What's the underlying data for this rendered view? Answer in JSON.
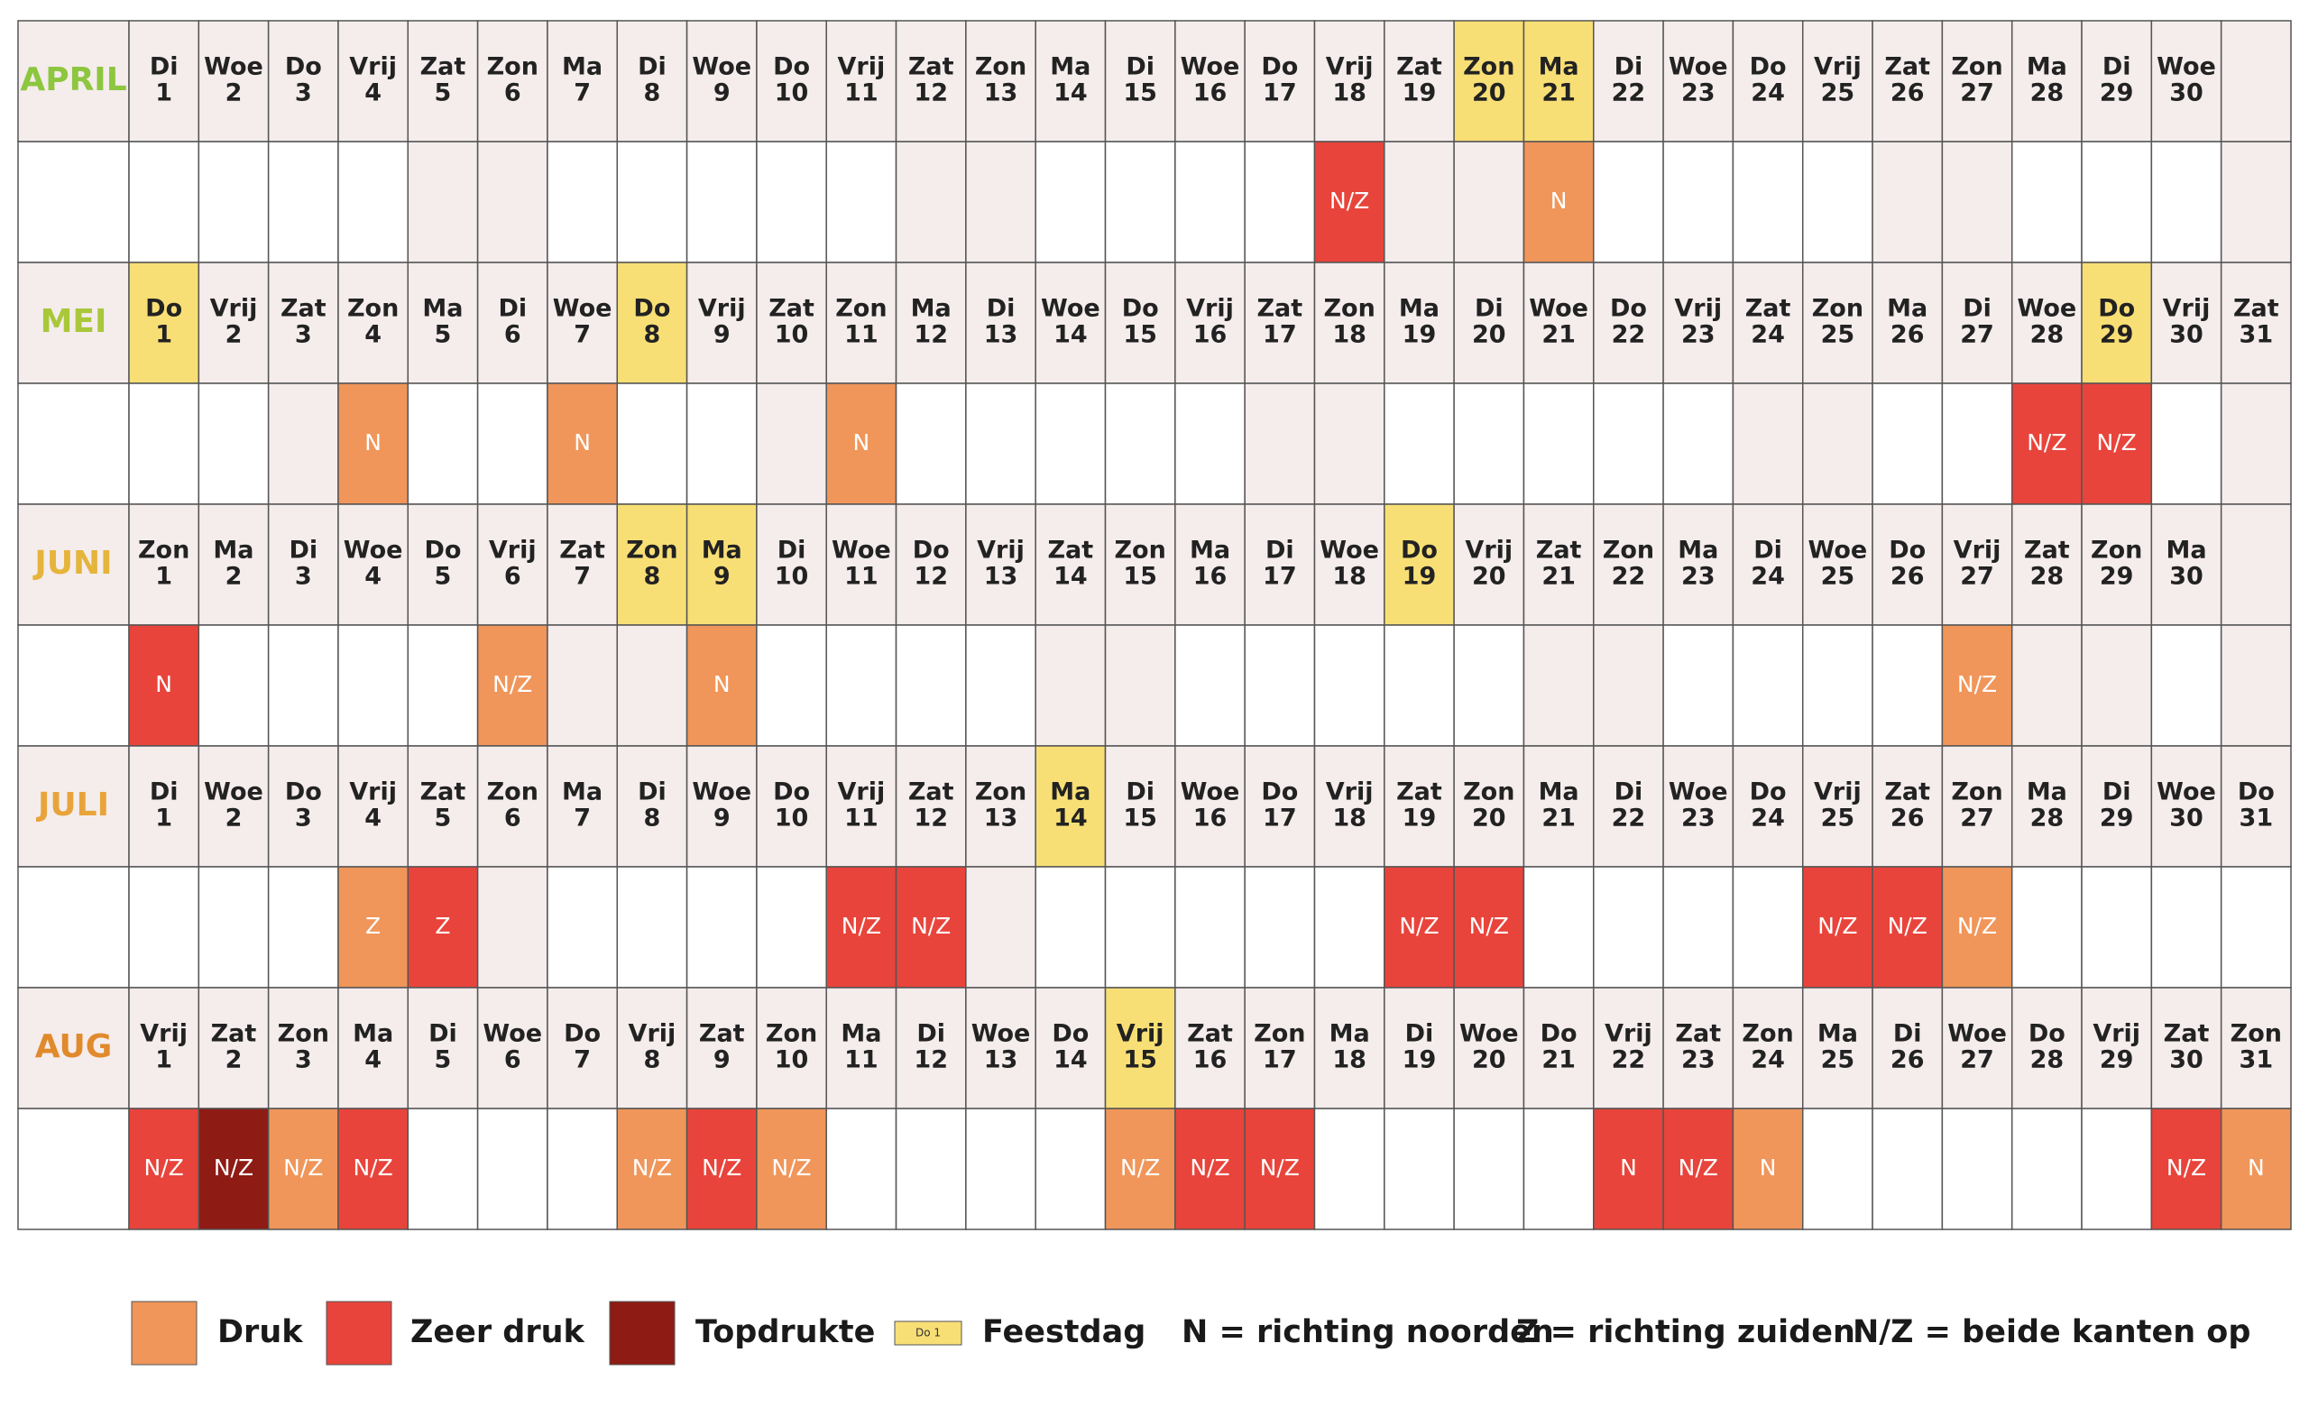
{
  "shaded_weekdays": [
    "Zat",
    "Zon"
  ],
  "months": [
    {
      "name": "APRIL",
      "color": "#8dc63f",
      "days": [
        {
          "wd": "Di",
          "n": 1
        },
        {
          "wd": "Woe",
          "n": 2
        },
        {
          "wd": "Do",
          "n": 3
        },
        {
          "wd": "Vrij",
          "n": 4
        },
        {
          "wd": "Zat",
          "n": 5
        },
        {
          "wd": "Zon",
          "n": 6
        },
        {
          "wd": "Ma",
          "n": 7
        },
        {
          "wd": "Di",
          "n": 8
        },
        {
          "wd": "Woe",
          "n": 9
        },
        {
          "wd": "Do",
          "n": 10
        },
        {
          "wd": "Vrij",
          "n": 11
        },
        {
          "wd": "Zat",
          "n": 12
        },
        {
          "wd": "Zon",
          "n": 13
        },
        {
          "wd": "Ma",
          "n": 14
        },
        {
          "wd": "Di",
          "n": 15
        },
        {
          "wd": "Woe",
          "n": 16
        },
        {
          "wd": "Do",
          "n": 17
        },
        {
          "wd": "Vrij",
          "n": 18,
          "traffic": {
            "level": "Zeer druk",
            "label": "N/Z"
          }
        },
        {
          "wd": "Zat",
          "n": 19
        },
        {
          "wd": "Zon",
          "n": 20,
          "holiday": true
        },
        {
          "wd": "Ma",
          "n": 21,
          "holiday": true,
          "traffic": {
            "level": "Druk",
            "label": "N"
          }
        },
        {
          "wd": "Di",
          "n": 22
        },
        {
          "wd": "Woe",
          "n": 23
        },
        {
          "wd": "Do",
          "n": 24
        },
        {
          "wd": "Vrij",
          "n": 25
        },
        {
          "wd": "Zat",
          "n": 26
        },
        {
          "wd": "Zon",
          "n": 27
        },
        {
          "wd": "Ma",
          "n": 28
        },
        {
          "wd": "Di",
          "n": 29
        },
        {
          "wd": "Woe",
          "n": 30
        }
      ]
    },
    {
      "name": "MEI",
      "color": "#a8c83a",
      "days": [
        {
          "wd": "Do",
          "n": 1,
          "holiday": true
        },
        {
          "wd": "Vrij",
          "n": 2
        },
        {
          "wd": "Zat",
          "n": 3
        },
        {
          "wd": "Zon",
          "n": 4,
          "traffic": {
            "level": "Druk",
            "label": "N"
          }
        },
        {
          "wd": "Ma",
          "n": 5
        },
        {
          "wd": "Di",
          "n": 6
        },
        {
          "wd": "Woe",
          "n": 7,
          "traffic": {
            "level": "Druk",
            "label": "N"
          }
        },
        {
          "wd": "Do",
          "n": 8,
          "holiday": true
        },
        {
          "wd": "Vrij",
          "n": 9
        },
        {
          "wd": "Zat",
          "n": 10
        },
        {
          "wd": "Zon",
          "n": 11,
          "traffic": {
            "level": "Druk",
            "label": "N"
          }
        },
        {
          "wd": "Ma",
          "n": 12
        },
        {
          "wd": "Di",
          "n": 13
        },
        {
          "wd": "Woe",
          "n": 14
        },
        {
          "wd": "Do",
          "n": 15
        },
        {
          "wd": "Vrij",
          "n": 16
        },
        {
          "wd": "Zat",
          "n": 17
        },
        {
          "wd": "Zon",
          "n": 18
        },
        {
          "wd": "Ma",
          "n": 19
        },
        {
          "wd": "Di",
          "n": 20
        },
        {
          "wd": "Woe",
          "n": 21
        },
        {
          "wd": "Do",
          "n": 22
        },
        {
          "wd": "Vrij",
          "n": 23
        },
        {
          "wd": "Zat",
          "n": 24
        },
        {
          "wd": "Zon",
          "n": 25
        },
        {
          "wd": "Ma",
          "n": 26
        },
        {
          "wd": "Di",
          "n": 27
        },
        {
          "wd": "Woe",
          "n": 28,
          "traffic": {
            "level": "Zeer druk",
            "label": "N/Z"
          }
        },
        {
          "wd": "Do",
          "n": 29,
          "holiday": true,
          "traffic": {
            "level": "Zeer druk",
            "label": "N/Z"
          }
        },
        {
          "wd": "Vrij",
          "n": 30
        },
        {
          "wd": "Zat",
          "n": 31
        }
      ]
    },
    {
      "name": "JUNI",
      "color": "#e5b43a",
      "days": [
        {
          "wd": "Zon",
          "n": 1,
          "traffic": {
            "level": "Zeer druk",
            "label": "N"
          }
        },
        {
          "wd": "Ma",
          "n": 2
        },
        {
          "wd": "Di",
          "n": 3
        },
        {
          "wd": "Woe",
          "n": 4
        },
        {
          "wd": "Do",
          "n": 5
        },
        {
          "wd": "Vrij",
          "n": 6,
          "traffic": {
            "level": "Druk",
            "label": "N/Z"
          }
        },
        {
          "wd": "Zat",
          "n": 7
        },
        {
          "wd": "Zon",
          "n": 8,
          "holiday": true
        },
        {
          "wd": "Ma",
          "n": 9,
          "holiday": true,
          "traffic": {
            "level": "Druk",
            "label": "N"
          }
        },
        {
          "wd": "Di",
          "n": 10
        },
        {
          "wd": "Woe",
          "n": 11
        },
        {
          "wd": "Do",
          "n": 12
        },
        {
          "wd": "Vrij",
          "n": 13
        },
        {
          "wd": "Zat",
          "n": 14
        },
        {
          "wd": "Zon",
          "n": 15
        },
        {
          "wd": "Ma",
          "n": 16
        },
        {
          "wd": "Di",
          "n": 17
        },
        {
          "wd": "Woe",
          "n": 18
        },
        {
          "wd": "Do",
          "n": 19,
          "holiday": true
        },
        {
          "wd": "Vrij",
          "n": 20
        },
        {
          "wd": "Zat",
          "n": 21
        },
        {
          "wd": "Zon",
          "n": 22
        },
        {
          "wd": "Ma",
          "n": 23
        },
        {
          "wd": "Di",
          "n": 24
        },
        {
          "wd": "Woe",
          "n": 25
        },
        {
          "wd": "Do",
          "n": 26
        },
        {
          "wd": "Vrij",
          "n": 27,
          "traffic": {
            "level": "Druk",
            "label": "N/Z"
          }
        },
        {
          "wd": "Zat",
          "n": 28
        },
        {
          "wd": "Zon",
          "n": 29
        },
        {
          "wd": "Ma",
          "n": 30
        }
      ]
    },
    {
      "name": "JULI",
      "color": "#e8a43a",
      "days": [
        {
          "wd": "Di",
          "n": 1
        },
        {
          "wd": "Woe",
          "n": 2
        },
        {
          "wd": "Do",
          "n": 3
        },
        {
          "wd": "Vrij",
          "n": 4,
          "traffic": {
            "level": "Druk",
            "label": "Z"
          }
        },
        {
          "wd": "Zat",
          "n": 5,
          "traffic": {
            "level": "Zeer druk",
            "label": "Z"
          }
        },
        {
          "wd": "Zon",
          "n": 6
        },
        {
          "wd": "Ma",
          "n": 7
        },
        {
          "wd": "Di",
          "n": 8
        },
        {
          "wd": "Woe",
          "n": 9
        },
        {
          "wd": "Do",
          "n": 10
        },
        {
          "wd": "Vrij",
          "n": 11,
          "traffic": {
            "level": "Zeer druk",
            "label": "N/Z"
          }
        },
        {
          "wd": "Zat",
          "n": 12,
          "traffic": {
            "level": "Zeer druk",
            "label": "N/Z"
          }
        },
        {
          "wd": "Zon",
          "n": 13
        },
        {
          "wd": "Ma",
          "n": 14,
          "holiday": true
        },
        {
          "wd": "Di",
          "n": 15
        },
        {
          "wd": "Woe",
          "n": 16
        },
        {
          "wd": "Do",
          "n": 17
        },
        {
          "wd": "Vrij",
          "n": 18
        },
        {
          "wd": "Zat",
          "n": 19,
          "traffic": {
            "level": "Zeer druk",
            "label": "N/Z"
          }
        },
        {
          "wd": "Zon",
          "n": 20,
          "traffic": {
            "level": "Zeer druk",
            "label": "N/Z"
          }
        },
        {
          "wd": "Ma",
          "n": 21
        },
        {
          "wd": "Di",
          "n": 22
        },
        {
          "wd": "Woe",
          "n": 23
        },
        {
          "wd": "Do",
          "n": 24
        },
        {
          "wd": "Vrij",
          "n": 25,
          "traffic": {
            "level": "Zeer druk",
            "label": "N/Z"
          }
        },
        {
          "wd": "Zat",
          "n": 26,
          "traffic": {
            "level": "Zeer druk",
            "label": "N/Z"
          }
        },
        {
          "wd": "Zon",
          "n": 27,
          "traffic": {
            "level": "Druk",
            "label": "N/Z"
          }
        },
        {
          "wd": "Ma",
          "n": 28
        },
        {
          "wd": "Di",
          "n": 29
        },
        {
          "wd": "Woe",
          "n": 30
        },
        {
          "wd": "Do",
          "n": 31
        }
      ]
    },
    {
      "name": "AUG",
      "color": "#e08a2c",
      "days": [
        {
          "wd": "Vrij",
          "n": 1,
          "traffic": {
            "level": "Zeer druk",
            "label": "N/Z"
          }
        },
        {
          "wd": "Zat",
          "n": 2,
          "traffic": {
            "level": "Topdrukte",
            "label": "N/Z"
          }
        },
        {
          "wd": "Zon",
          "n": 3,
          "traffic": {
            "level": "Druk",
            "label": "N/Z"
          }
        },
        {
          "wd": "Ma",
          "n": 4,
          "traffic": {
            "level": "Zeer druk",
            "label": "N/Z"
          }
        },
        {
          "wd": "Di",
          "n": 5
        },
        {
          "wd": "Woe",
          "n": 6
        },
        {
          "wd": "Do",
          "n": 7
        },
        {
          "wd": "Vrij",
          "n": 8,
          "traffic": {
            "level": "Druk",
            "label": "N/Z"
          }
        },
        {
          "wd": "Zat",
          "n": 9,
          "traffic": {
            "level": "Zeer druk",
            "label": "N/Z"
          }
        },
        {
          "wd": "Zon",
          "n": 10,
          "traffic": {
            "level": "Druk",
            "label": "N/Z"
          }
        },
        {
          "wd": "Ma",
          "n": 11
        },
        {
          "wd": "Di",
          "n": 12
        },
        {
          "wd": "Woe",
          "n": 13
        },
        {
          "wd": "Do",
          "n": 14
        },
        {
          "wd": "Vrij",
          "n": 15,
          "holiday": true,
          "traffic": {
            "level": "Druk",
            "label": "N/Z"
          }
        },
        {
          "wd": "Zat",
          "n": 16,
          "traffic": {
            "level": "Zeer druk",
            "label": "N/Z"
          }
        },
        {
          "wd": "Zon",
          "n": 17,
          "traffic": {
            "level": "Zeer druk",
            "label": "N/Z"
          }
        },
        {
          "wd": "Ma",
          "n": 18
        },
        {
          "wd": "Di",
          "n": 19
        },
        {
          "wd": "Woe",
          "n": 20
        },
        {
          "wd": "Do",
          "n": 21
        },
        {
          "wd": "Vrij",
          "n": 22,
          "traffic": {
            "level": "Zeer druk",
            "label": "N"
          }
        },
        {
          "wd": "Zat",
          "n": 23,
          "traffic": {
            "level": "Zeer druk",
            "label": "N/Z"
          }
        },
        {
          "wd": "Zon",
          "n": 24,
          "traffic": {
            "level": "Druk",
            "label": "N"
          }
        },
        {
          "wd": "Ma",
          "n": 25
        },
        {
          "wd": "Di",
          "n": 26
        },
        {
          "wd": "Woe",
          "n": 27
        },
        {
          "wd": "Do",
          "n": 28
        },
        {
          "wd": "Vrij",
          "n": 29
        },
        {
          "wd": "Zat",
          "n": 30,
          "traffic": {
            "level": "Zeer druk",
            "label": "N/Z"
          }
        },
        {
          "wd": "Zon",
          "n": 31,
          "traffic": {
            "level": "Druk",
            "label": "N"
          }
        }
      ]
    }
  ],
  "legend": {
    "levels": [
      {
        "label": "Druk",
        "color": "#f0965a"
      },
      {
        "label": "Zeer druk",
        "color": "#e8443b"
      },
      {
        "label": "Topdrukte",
        "color": "#8e1b14"
      }
    ],
    "holiday": {
      "label": "Feestdag",
      "sample": "Do 1",
      "color": "#f8df75"
    },
    "notes": [
      "N = richting noorden",
      "Z = richting zuiden",
      "N/Z = beide kanten op"
    ]
  }
}
